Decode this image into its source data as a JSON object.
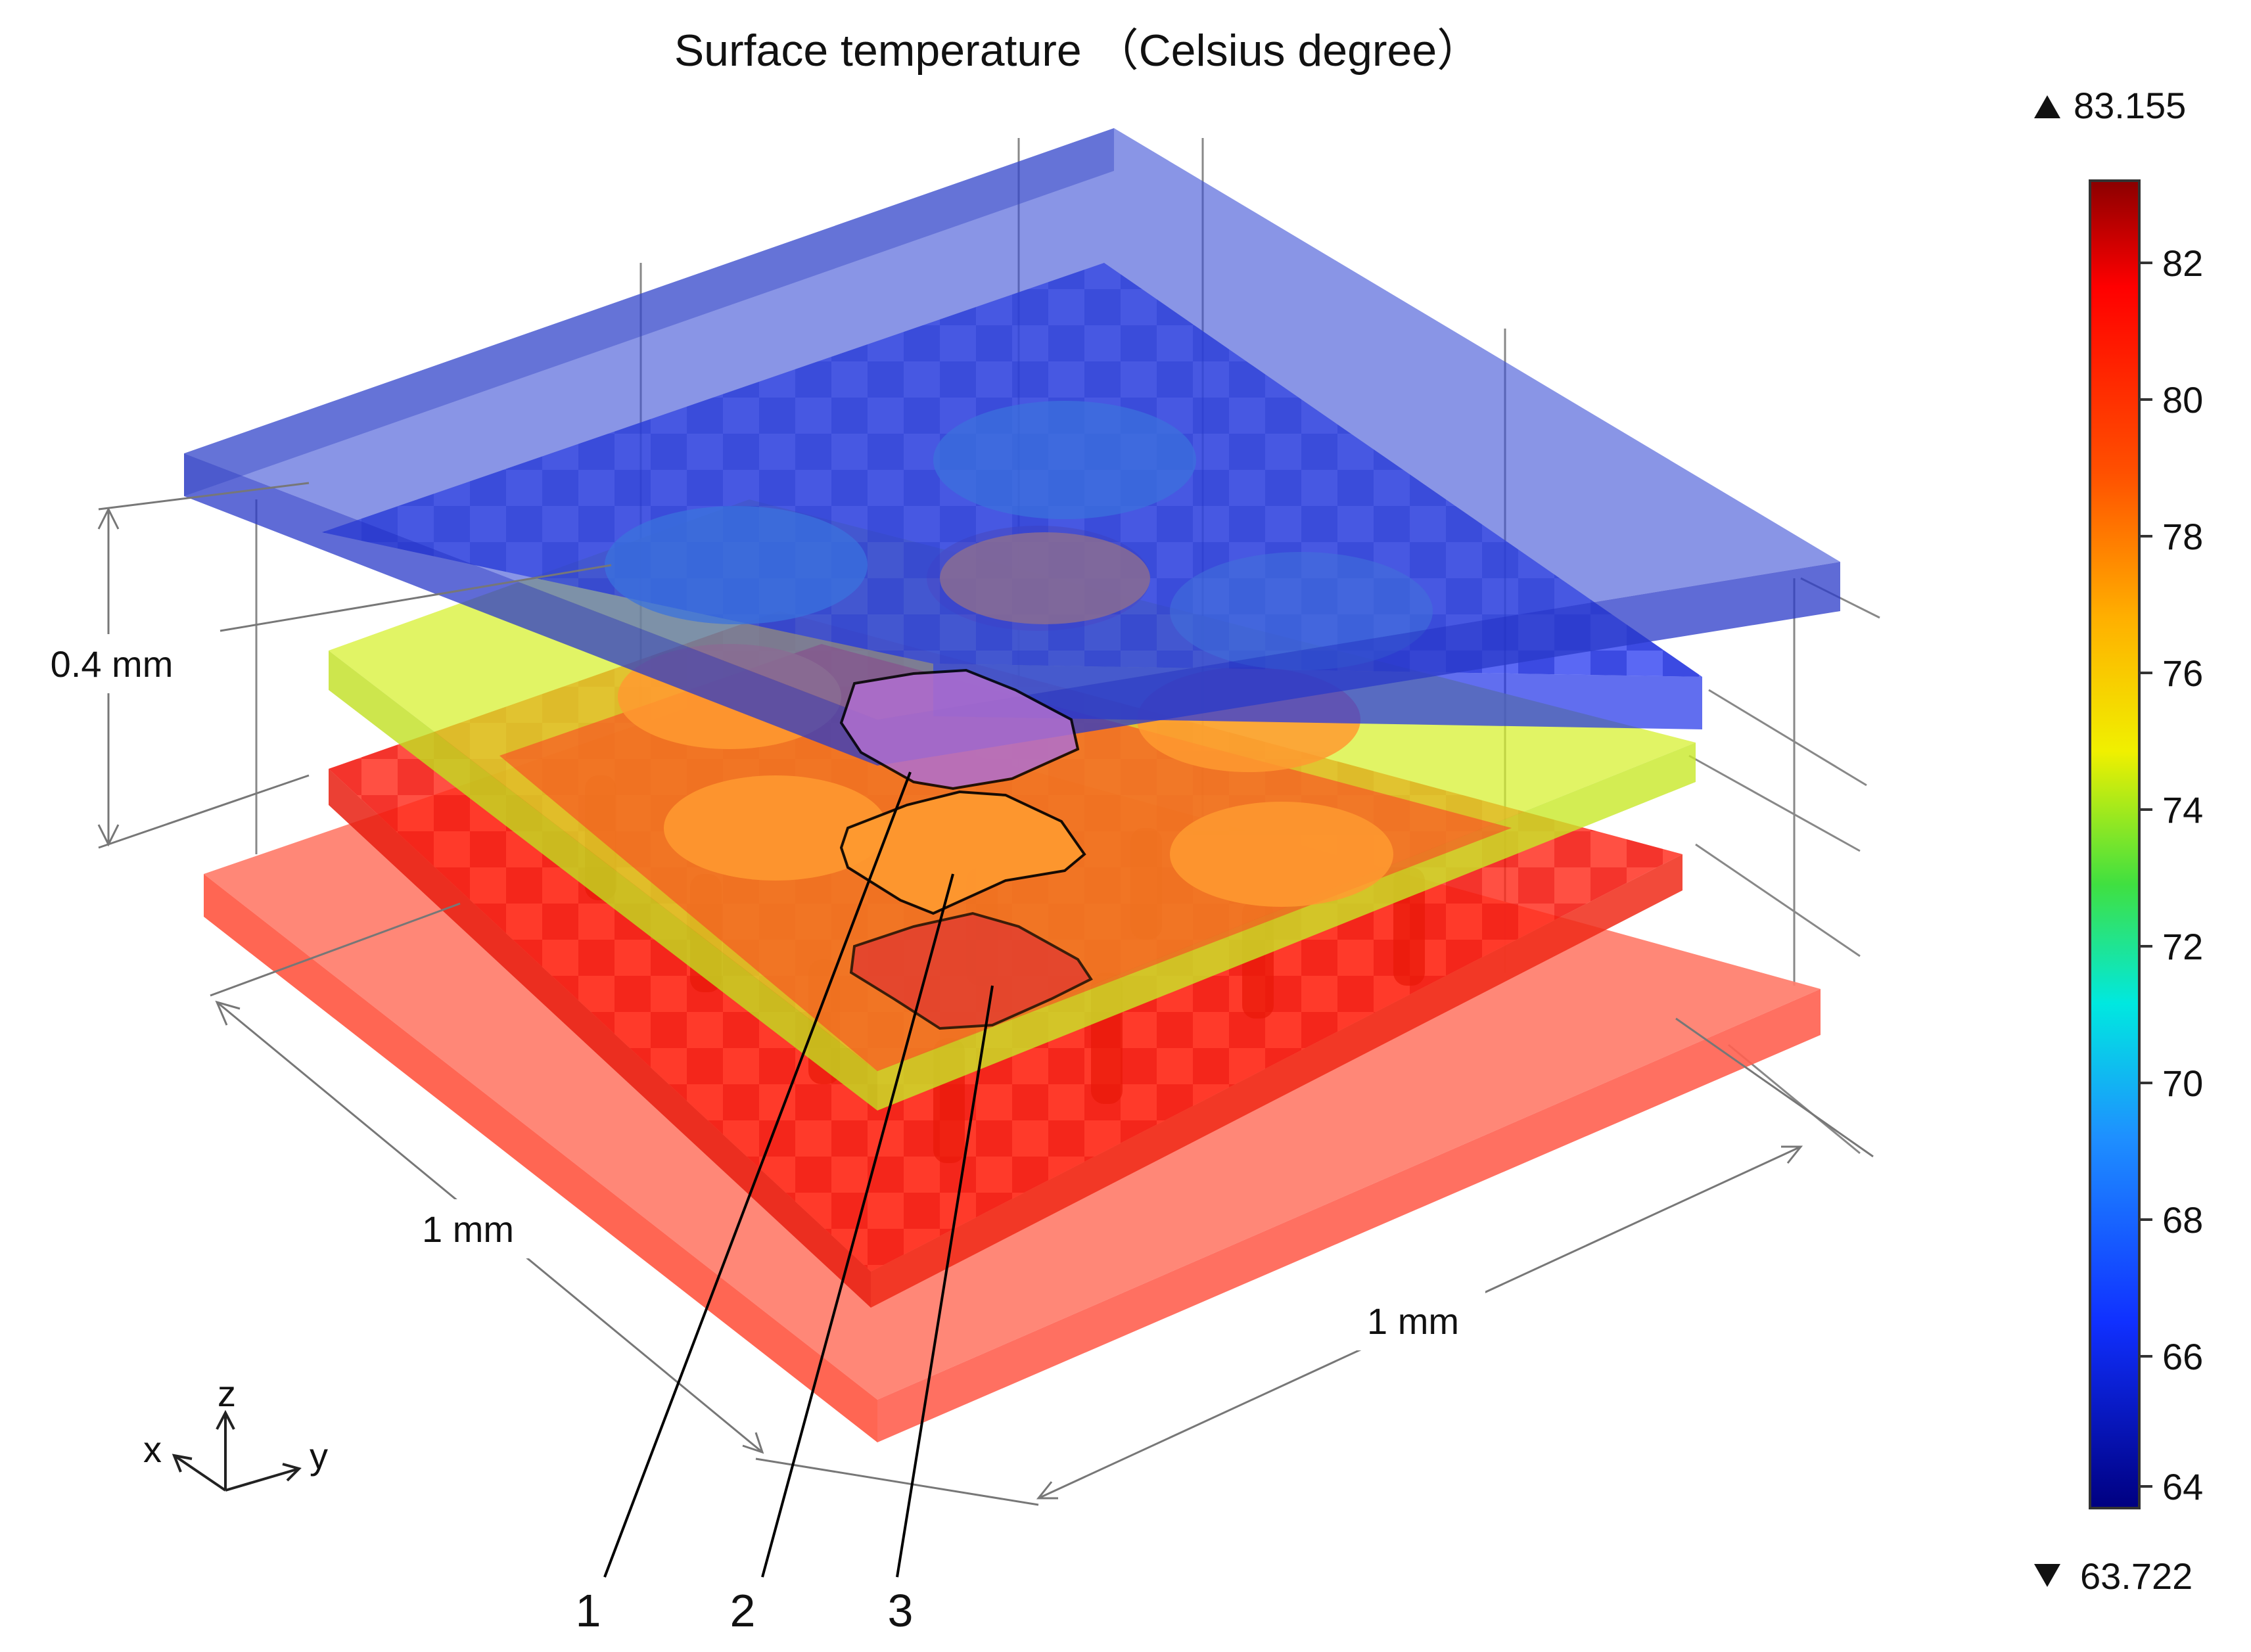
{
  "title": "Surface temperature （Celsius degree）",
  "colorbar": {
    "max_value": "83.155",
    "min_value": "63.722",
    "ticks": [
      "82",
      "80",
      "78",
      "76",
      "74",
      "72",
      "70",
      "68",
      "66",
      "64"
    ],
    "gradient": [
      "#8b0000",
      "#ff0000",
      "#ff7a00",
      "#ffd800",
      "#c8ff00",
      "#00d060",
      "#00d8e0",
      "#1e90ff",
      "#1030ff",
      "#000090"
    ]
  },
  "dimensions": {
    "height": "0.4 mm",
    "width_x": "1 mm",
    "width_y": "1 mm"
  },
  "axes": {
    "x": "x",
    "y": "y",
    "z": "z"
  },
  "callouts": [
    "1",
    "2",
    "3"
  ],
  "layer_colors": {
    "top_plate": "#3a4fd6",
    "upper_chip": "#2233ee",
    "middle_chip": "#c8ef2a",
    "lower_chip": "#ff2a1a",
    "base_plate": "#ff7060",
    "hot_spot": "#ff9a30",
    "highlight_1": "#b06fd0"
  }
}
